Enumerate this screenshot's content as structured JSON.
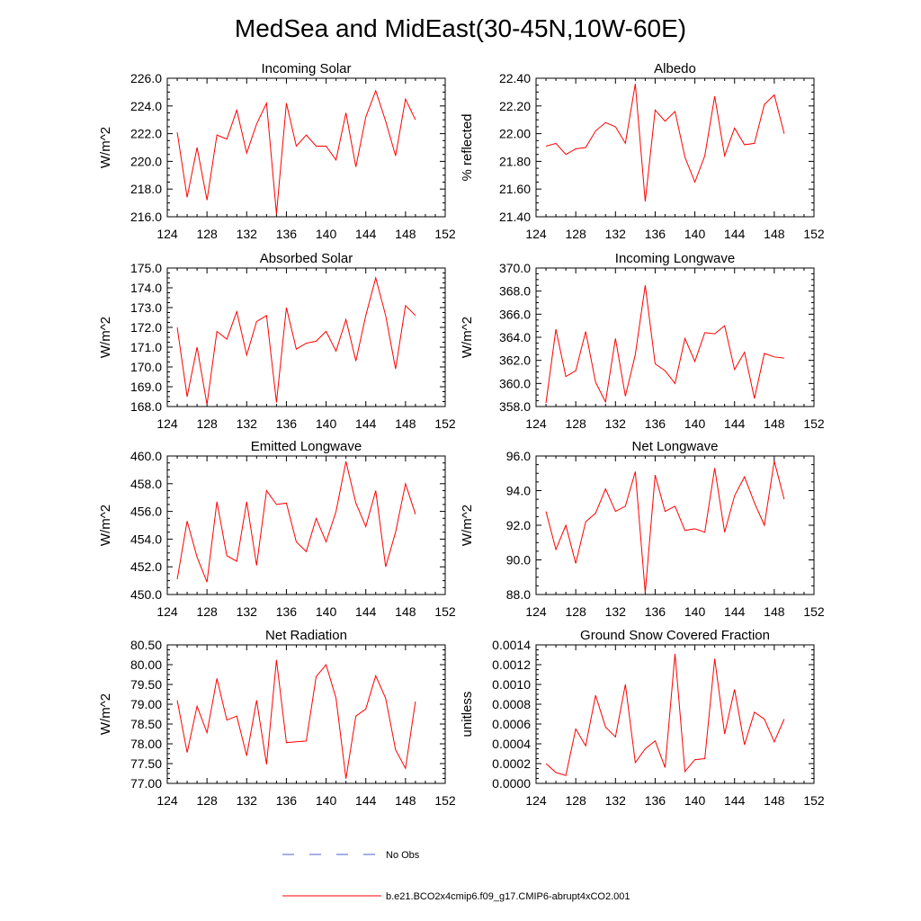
{
  "title": "MedSea and MidEast(30-45N,10W-60E)",
  "colors": {
    "model": "#ff0000",
    "obs": "#4b5fd0",
    "axis": "#000000"
  },
  "legend": {
    "items": [
      {
        "label": "No Obs",
        "color": "#4b5fd0",
        "style": "dashed"
      },
      {
        "label": "b.e21.BCO2x4cmip6.f09_g17.CMIP6-abrupt4xCO2.001",
        "color": "#ff0000",
        "style": "solid"
      }
    ]
  },
  "chart_data": [
    {
      "type": "line",
      "title": "Incoming Solar",
      "ylabel": "W/m^2",
      "xlim": [
        124,
        152
      ],
      "ylim": [
        216.0,
        226.0
      ],
      "xticks": [
        124,
        128,
        132,
        136,
        140,
        144,
        148,
        152
      ],
      "xtick_labels": [
        "124",
        "128",
        "132",
        "136",
        "140",
        "144",
        "148",
        "152"
      ],
      "yticks": [
        216.0,
        218.0,
        220.0,
        222.0,
        224.0,
        226.0
      ],
      "ytick_labels": [
        "216.0",
        "218.0",
        "220.0",
        "222.0",
        "224.0",
        "226.0"
      ],
      "series": [
        {
          "x": [
            125,
            126,
            127,
            128,
            129,
            130,
            131,
            132,
            133,
            134,
            135,
            136,
            137,
            138,
            139,
            140,
            141,
            142,
            143,
            144,
            145,
            146,
            147,
            148,
            149
          ],
          "values": [
            222.1,
            217.4,
            221.0,
            217.2,
            221.9,
            221.6,
            223.7,
            220.6,
            222.7,
            224.2,
            216.2,
            224.2,
            221.1,
            221.9,
            221.1,
            221.1,
            220.1,
            223.5,
            219.6,
            223.2,
            225.1,
            222.9,
            220.4,
            224.5,
            223.0
          ]
        }
      ]
    },
    {
      "type": "line",
      "title": "Albedo",
      "ylabel": "% reflected",
      "xlim": [
        124,
        152
      ],
      "ylim": [
        21.4,
        22.4
      ],
      "xticks": [
        124,
        128,
        132,
        136,
        140,
        144,
        148,
        152
      ],
      "xtick_labels": [
        "124",
        "128",
        "132",
        "136",
        "140",
        "144",
        "148",
        "152"
      ],
      "yticks": [
        21.4,
        21.6,
        21.8,
        22.0,
        22.2,
        22.4
      ],
      "ytick_labels": [
        "21.40",
        "21.60",
        "21.80",
        "22.00",
        "22.20",
        "22.40"
      ],
      "series": [
        {
          "x": [
            125,
            126,
            127,
            128,
            129,
            130,
            131,
            132,
            133,
            134,
            135,
            136,
            137,
            138,
            139,
            140,
            141,
            142,
            143,
            144,
            145,
            146,
            147,
            148,
            149
          ],
          "values": [
            21.91,
            21.93,
            21.85,
            21.89,
            21.9,
            22.02,
            22.08,
            22.05,
            21.93,
            22.36,
            21.51,
            22.17,
            22.09,
            22.16,
            21.83,
            21.65,
            21.84,
            22.27,
            21.84,
            22.04,
            21.92,
            21.93,
            22.21,
            22.28,
            22.0
          ]
        }
      ]
    },
    {
      "type": "line",
      "title": "Absorbed Solar",
      "ylabel": "W/m^2",
      "xlim": [
        124,
        152
      ],
      "ylim": [
        168.0,
        175.0
      ],
      "xticks": [
        124,
        128,
        132,
        136,
        140,
        144,
        148,
        152
      ],
      "xtick_labels": [
        "124",
        "128",
        "132",
        "136",
        "140",
        "144",
        "148",
        "152"
      ],
      "yticks": [
        168.0,
        169.0,
        170.0,
        171.0,
        172.0,
        173.0,
        174.0,
        175.0
      ],
      "ytick_labels": [
        "168.0",
        "169.0",
        "170.0",
        "171.0",
        "172.0",
        "173.0",
        "174.0",
        "175.0"
      ],
      "series": [
        {
          "x": [
            125,
            126,
            127,
            128,
            129,
            130,
            131,
            132,
            133,
            134,
            135,
            136,
            137,
            138,
            139,
            140,
            141,
            142,
            143,
            144,
            145,
            146,
            147,
            148,
            149
          ],
          "values": [
            172.0,
            168.5,
            171.0,
            168.1,
            171.8,
            171.4,
            172.8,
            170.6,
            172.3,
            172.6,
            168.2,
            173.0,
            170.9,
            171.2,
            171.3,
            171.8,
            170.8,
            172.4,
            170.3,
            172.6,
            174.5,
            172.6,
            169.9,
            173.1,
            172.6
          ]
        }
      ]
    },
    {
      "type": "line",
      "title": "Incoming Longwave",
      "ylabel": "W/m^2",
      "xlim": [
        124,
        152
      ],
      "ylim": [
        358.0,
        370.0
      ],
      "xticks": [
        124,
        128,
        132,
        136,
        140,
        144,
        148,
        152
      ],
      "xtick_labels": [
        "124",
        "128",
        "132",
        "136",
        "140",
        "144",
        "148",
        "152"
      ],
      "yticks": [
        358.0,
        360.0,
        362.0,
        364.0,
        366.0,
        368.0,
        370.0
      ],
      "ytick_labels": [
        "358.0",
        "360.0",
        "362.0",
        "364.0",
        "366.0",
        "368.0",
        "370.0"
      ],
      "series": [
        {
          "x": [
            125,
            126,
            127,
            128,
            129,
            130,
            131,
            132,
            133,
            134,
            135,
            136,
            137,
            138,
            139,
            140,
            141,
            142,
            143,
            144,
            145,
            146,
            147,
            148,
            149
          ],
          "values": [
            358.3,
            364.7,
            360.6,
            361.1,
            364.5,
            360.1,
            358.4,
            363.9,
            358.9,
            362.5,
            368.5,
            361.7,
            361.1,
            360.0,
            363.9,
            361.9,
            364.4,
            364.3,
            365.0,
            361.2,
            362.7,
            358.7,
            362.6,
            362.3,
            362.2
          ]
        }
      ]
    },
    {
      "type": "line",
      "title": "Emitted Longwave",
      "ylabel": "W/m^2",
      "xlim": [
        124,
        152
      ],
      "ylim": [
        450.0,
        460.0
      ],
      "xticks": [
        124,
        128,
        132,
        136,
        140,
        144,
        148,
        152
      ],
      "xtick_labels": [
        "124",
        "128",
        "132",
        "136",
        "140",
        "144",
        "148",
        "152"
      ],
      "yticks": [
        450.0,
        452.0,
        454.0,
        456.0,
        458.0,
        460.0
      ],
      "ytick_labels": [
        "450.0",
        "452.0",
        "454.0",
        "456.0",
        "458.0",
        "460.0"
      ],
      "series": [
        {
          "x": [
            125,
            126,
            127,
            128,
            129,
            130,
            131,
            132,
            133,
            134,
            135,
            136,
            137,
            138,
            139,
            140,
            141,
            142,
            143,
            144,
            145,
            146,
            147,
            148,
            149
          ],
          "values": [
            451.1,
            455.3,
            452.7,
            450.9,
            456.7,
            452.8,
            452.4,
            456.7,
            452.1,
            457.5,
            456.5,
            456.6,
            453.8,
            453.1,
            455.5,
            453.8,
            456.0,
            459.6,
            456.6,
            454.9,
            457.5,
            452.0,
            454.5,
            458.0,
            455.8
          ]
        }
      ]
    },
    {
      "type": "line",
      "title": "Net Longwave",
      "ylabel": "W/m^2",
      "xlim": [
        124,
        152
      ],
      "ylim": [
        88.0,
        96.0
      ],
      "xticks": [
        124,
        128,
        132,
        136,
        140,
        144,
        148,
        152
      ],
      "xtick_labels": [
        "124",
        "128",
        "132",
        "136",
        "140",
        "144",
        "148",
        "152"
      ],
      "yticks": [
        88.0,
        90.0,
        92.0,
        94.0,
        96.0
      ],
      "ytick_labels": [
        "88.0",
        "90.0",
        "92.0",
        "94.0",
        "96.0"
      ],
      "series": [
        {
          "x": [
            125,
            126,
            127,
            128,
            129,
            130,
            131,
            132,
            133,
            134,
            135,
            136,
            137,
            138,
            139,
            140,
            141,
            142,
            143,
            144,
            145,
            146,
            147,
            148,
            149
          ],
          "values": [
            92.8,
            90.6,
            92.0,
            89.8,
            92.2,
            92.7,
            94.1,
            92.8,
            93.1,
            95.1,
            88.1,
            94.9,
            92.8,
            93.1,
            91.7,
            91.8,
            91.6,
            95.3,
            91.6,
            93.7,
            94.8,
            93.3,
            92.0,
            95.7,
            93.5
          ]
        }
      ]
    },
    {
      "type": "line",
      "title": "Net Radiation",
      "ylabel": "W/m^2",
      "xlim": [
        124,
        152
      ],
      "ylim": [
        77.0,
        80.5
      ],
      "xticks": [
        124,
        128,
        132,
        136,
        140,
        144,
        148,
        152
      ],
      "xtick_labels": [
        "124",
        "128",
        "132",
        "136",
        "140",
        "144",
        "148",
        "152"
      ],
      "yticks": [
        77.0,
        77.5,
        78.0,
        78.5,
        79.0,
        79.5,
        80.0,
        80.5
      ],
      "ytick_labels": [
        "77.00",
        "77.50",
        "78.00",
        "78.50",
        "79.00",
        "79.50",
        "80.00",
        "80.50"
      ],
      "series": [
        {
          "x": [
            125,
            126,
            127,
            128,
            129,
            130,
            131,
            132,
            133,
            134,
            135,
            136,
            137,
            138,
            139,
            140,
            141,
            142,
            143,
            144,
            145,
            146,
            147,
            148,
            149
          ],
          "values": [
            79.1,
            77.78,
            78.95,
            78.28,
            79.65,
            78.6,
            78.7,
            77.7,
            79.1,
            77.48,
            80.12,
            78.03,
            78.05,
            78.07,
            79.7,
            80.0,
            79.15,
            77.12,
            78.7,
            78.88,
            79.72,
            79.15,
            77.85,
            77.38,
            79.07
          ]
        }
      ]
    },
    {
      "type": "line",
      "title": "Ground Snow Covered Fraction",
      "ylabel": "unitless",
      "xlim": [
        124,
        152
      ],
      "ylim": [
        0.0,
        0.0014
      ],
      "xticks": [
        124,
        128,
        132,
        136,
        140,
        144,
        148,
        152
      ],
      "xtick_labels": [
        "124",
        "128",
        "132",
        "136",
        "140",
        "144",
        "148",
        "152"
      ],
      "yticks": [
        0.0,
        0.0002,
        0.0004,
        0.0006,
        0.0008,
        0.001,
        0.0012,
        0.0014
      ],
      "ytick_labels": [
        "0.0000",
        "0.0002",
        "0.0004",
        "0.0006",
        "0.0008",
        "0.0010",
        "0.0012",
        "0.0014"
      ],
      "series": [
        {
          "x": [
            125,
            126,
            127,
            128,
            129,
            130,
            131,
            132,
            133,
            134,
            135,
            136,
            137,
            138,
            139,
            140,
            141,
            142,
            143,
            144,
            145,
            146,
            147,
            148,
            149
          ],
          "values": [
            0.0002,
            0.00011,
            8e-05,
            0.00055,
            0.00038,
            0.00089,
            0.00057,
            0.00047,
            0.001,
            0.00021,
            0.00035,
            0.00043,
            0.00016,
            0.00131,
            0.00012,
            0.00024,
            0.00025,
            0.00126,
            0.0005,
            0.00095,
            0.00039,
            0.00072,
            0.00065,
            0.00042,
            0.00065
          ]
        }
      ]
    }
  ]
}
